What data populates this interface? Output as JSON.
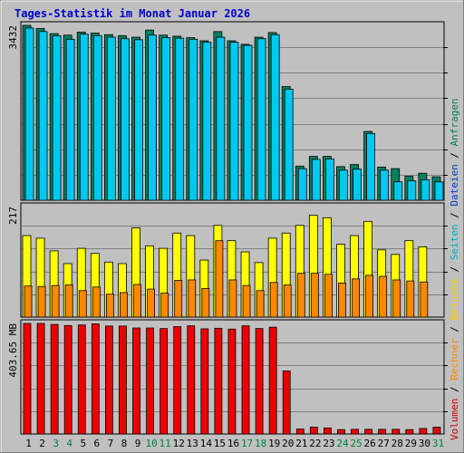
{
  "title": "Tages-Statistik im Monat Januar 2026",
  "colors": {
    "background": "#c0c0c0",
    "title": "#0000cc",
    "grid": "#808080",
    "anfragen": "#008060",
    "dateien": "#00c8f0",
    "seiten": "#0040c0",
    "besuche": "#ffff00",
    "rechner": "#ff8800",
    "volumen": "#ee0000",
    "day_normal": "#000000",
    "day_weekend": "#008040"
  },
  "legend": [
    {
      "name": "Volumen",
      "color": "#cc0000"
    },
    {
      "name": "Rechner",
      "color": "#ff8800"
    },
    {
      "name": "Besuche",
      "color": "#ffcc00"
    },
    {
      "name": "Seiten",
      "color": "#00aacc"
    },
    {
      "name": "Dateien",
      "color": "#0040c0"
    },
    {
      "name": "Anfragen",
      "color": "#008060"
    }
  ],
  "chart_data": [
    {
      "type": "bar",
      "panel": "anfragen-dateien",
      "ymax_label": "3432",
      "ylim": [
        0,
        3432
      ],
      "categories": [
        "1",
        "2",
        "3",
        "4",
        "5",
        "6",
        "7",
        "8",
        "9",
        "10",
        "11",
        "12",
        "13",
        "14",
        "15",
        "16",
        "17",
        "18",
        "19",
        "20",
        "21",
        "22",
        "23",
        "24",
        "25",
        "26",
        "27",
        "28",
        "29",
        "30",
        "31"
      ],
      "series": [
        {
          "name": "Anfragen",
          "values": [
            3432,
            3370,
            3270,
            3240,
            3300,
            3280,
            3250,
            3230,
            3200,
            3340,
            3240,
            3220,
            3190,
            3130,
            3310,
            3130,
            3060,
            3200,
            3290,
            2230,
            670,
            860,
            860,
            660,
            700,
            1350,
            650,
            620,
            470,
            530,
            460
          ]
        },
        {
          "name": "Dateien",
          "values": [
            3380,
            3310,
            3230,
            3160,
            3260,
            3230,
            3200,
            3170,
            3150,
            3240,
            3190,
            3180,
            3160,
            3100,
            3200,
            3100,
            3040,
            3170,
            3250,
            2180,
            620,
            800,
            810,
            590,
            610,
            1310,
            590,
            360,
            380,
            400,
            360
          ]
        }
      ]
    },
    {
      "type": "bar",
      "panel": "seiten-besuche-rechner",
      "ymax_label": "217",
      "ylim": [
        0,
        217
      ],
      "categories": [
        "1",
        "2",
        "3",
        "4",
        "5",
        "6",
        "7",
        "8",
        "9",
        "10",
        "11",
        "12",
        "13",
        "14",
        "15",
        "16",
        "17",
        "18",
        "19",
        "20",
        "21",
        "22",
        "23",
        "24",
        "25",
        "26",
        "27",
        "28",
        "29",
        "30",
        "31"
      ],
      "series": [
        {
          "name": "Seiten",
          "values": [
            160,
            155,
            130,
            105,
            135,
            125,
            108,
            105,
            175,
            140,
            135,
            165,
            160,
            112,
            180,
            150,
            128,
            107,
            155,
            165,
            180,
            200,
            195,
            143,
            160,
            188,
            132,
            123,
            150,
            138,
            0
          ]
        },
        {
          "name": "Besuche",
          "values": [
            160,
            155,
            130,
            105,
            135,
            125,
            108,
            105,
            175,
            140,
            135,
            165,
            160,
            112,
            180,
            150,
            128,
            107,
            155,
            165,
            180,
            200,
            195,
            143,
            160,
            188,
            132,
            123,
            150,
            138,
            0
          ]
        },
        {
          "name": "Rechner",
          "values": [
            61,
            60,
            62,
            63,
            52,
            59,
            45,
            48,
            64,
            55,
            47,
            72,
            73,
            56,
            150,
            73,
            62,
            52,
            68,
            63,
            86,
            86,
            84,
            67,
            75,
            82,
            80,
            73,
            71,
            69,
            0
          ]
        }
      ]
    },
    {
      "type": "bar",
      "panel": "volumen",
      "ymax_label": "403.65 MB",
      "ylim": [
        0,
        403.65
      ],
      "categories": [
        "1",
        "2",
        "3",
        "4",
        "5",
        "6",
        "7",
        "8",
        "9",
        "10",
        "11",
        "12",
        "13",
        "14",
        "15",
        "16",
        "17",
        "18",
        "19",
        "20",
        "21",
        "22",
        "23",
        "24",
        "25",
        "26",
        "27",
        "28",
        "29",
        "30",
        "31"
      ],
      "series": [
        {
          "name": "Volumen",
          "values": [
            403.65,
            403.65,
            400,
            396,
            398,
            402,
            394,
            394,
            387,
            387,
            385,
            392,
            395,
            384,
            386,
            383,
            395,
            385,
            390,
            230,
            18,
            25,
            22,
            16,
            17,
            17,
            17,
            17,
            16,
            20,
            25
          ]
        }
      ]
    }
  ],
  "day_labels": [
    {
      "text": "1",
      "weekend": false
    },
    {
      "text": "2",
      "weekend": false
    },
    {
      "text": "3",
      "weekend": true
    },
    {
      "text": "4",
      "weekend": true
    },
    {
      "text": "5",
      "weekend": false
    },
    {
      "text": "6",
      "weekend": false
    },
    {
      "text": "7",
      "weekend": false
    },
    {
      "text": "8",
      "weekend": false
    },
    {
      "text": "9",
      "weekend": false
    },
    {
      "text": "10",
      "weekend": true
    },
    {
      "text": "11",
      "weekend": true
    },
    {
      "text": "12",
      "weekend": false
    },
    {
      "text": "13",
      "weekend": false
    },
    {
      "text": "14",
      "weekend": false
    },
    {
      "text": "15",
      "weekend": false
    },
    {
      "text": "16",
      "weekend": false
    },
    {
      "text": "17",
      "weekend": true
    },
    {
      "text": "18",
      "weekend": true
    },
    {
      "text": "19",
      "weekend": false
    },
    {
      "text": "20",
      "weekend": false
    },
    {
      "text": "21",
      "weekend": false
    },
    {
      "text": "22",
      "weekend": false
    },
    {
      "text": "23",
      "weekend": false
    },
    {
      "text": "24",
      "weekend": true
    },
    {
      "text": "25",
      "weekend": true
    },
    {
      "text": "26",
      "weekend": false
    },
    {
      "text": "27",
      "weekend": false
    },
    {
      "text": "28",
      "weekend": false
    },
    {
      "text": "29",
      "weekend": false
    },
    {
      "text": "30",
      "weekend": false
    },
    {
      "text": "31",
      "weekend": true
    }
  ]
}
